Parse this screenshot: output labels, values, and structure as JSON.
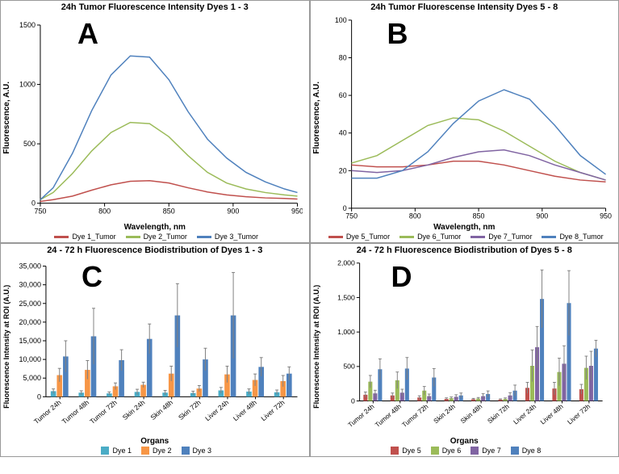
{
  "panelA": {
    "letter": "A",
    "title": "24h Tumor Fluorescence Intensity Dyes 1 - 3",
    "type": "line",
    "xlabel": "Wavelength, nm",
    "ylabel": "Fluorescence, A.U.",
    "xlim": [
      750,
      950
    ],
    "xtick_step": 50,
    "ylim": [
      0,
      1500
    ],
    "ytick_step": 500,
    "title_fontsize": 11,
    "label_fontsize": 10,
    "tick_fontsize": 9,
    "background_color": "#ffffff",
    "axis_color": "#000000",
    "line_width": 1.5,
    "series": [
      {
        "name": "Dye 1_Tumor",
        "color": "#c0504d",
        "x": [
          750,
          760,
          775,
          790,
          805,
          820,
          835,
          850,
          865,
          880,
          895,
          910,
          925,
          940,
          950
        ],
        "y": [
          15,
          30,
          60,
          110,
          155,
          185,
          190,
          170,
          130,
          95,
          70,
          55,
          45,
          40,
          35
        ]
      },
      {
        "name": "Dye 2_Tumor",
        "color": "#9bbb59",
        "x": [
          750,
          760,
          775,
          790,
          805,
          820,
          835,
          850,
          865,
          880,
          895,
          910,
          925,
          940,
          950
        ],
        "y": [
          30,
          90,
          250,
          440,
          595,
          680,
          670,
          560,
          400,
          260,
          170,
          120,
          90,
          70,
          60
        ]
      },
      {
        "name": "Dye 3_Tumor",
        "color": "#4f81bd",
        "x": [
          750,
          760,
          775,
          790,
          805,
          820,
          835,
          850,
          865,
          880,
          895,
          910,
          925,
          940,
          950
        ],
        "y": [
          30,
          130,
          420,
          780,
          1080,
          1240,
          1230,
          1040,
          770,
          540,
          380,
          260,
          180,
          120,
          90
        ]
      }
    ]
  },
  "panelB": {
    "letter": "B",
    "title": "24h Tumor Fluorescense Intensity Dyes 5 - 8",
    "type": "line",
    "xlabel": "Wavelength, nm",
    "ylabel": "Fluorescence, A.U.",
    "xlim": [
      750,
      950
    ],
    "xtick_step": 50,
    "ylim": [
      0,
      100
    ],
    "ytick_step": 20,
    "title_fontsize": 11,
    "label_fontsize": 10,
    "tick_fontsize": 9,
    "background_color": "#ffffff",
    "axis_color": "#000000",
    "line_width": 1.5,
    "series": [
      {
        "name": "Dye 5_Tumor",
        "color": "#c0504d",
        "x": [
          750,
          770,
          790,
          810,
          830,
          850,
          870,
          890,
          910,
          930,
          950
        ],
        "y": [
          23,
          22,
          22,
          23,
          25,
          25,
          23,
          20,
          17,
          15,
          14
        ]
      },
      {
        "name": "Dye 6_Tumor",
        "color": "#9bbb59",
        "x": [
          750,
          770,
          790,
          810,
          830,
          850,
          870,
          890,
          910,
          930,
          950
        ],
        "y": [
          24,
          28,
          36,
          44,
          48,
          47,
          41,
          33,
          25,
          19,
          15
        ]
      },
      {
        "name": "Dye 7_Tumor",
        "color": "#8064a2",
        "x": [
          750,
          770,
          790,
          810,
          830,
          850,
          870,
          890,
          910,
          930,
          950
        ],
        "y": [
          20,
          19,
          20,
          23,
          27,
          30,
          31,
          28,
          23,
          19,
          15
        ]
      },
      {
        "name": "Dye 8_Tumor",
        "color": "#4f81bd",
        "x": [
          750,
          770,
          790,
          810,
          830,
          850,
          870,
          890,
          910,
          930,
          950
        ],
        "y": [
          16,
          16,
          20,
          30,
          45,
          57,
          63,
          58,
          44,
          28,
          18
        ]
      }
    ]
  },
  "panelC": {
    "letter": "C",
    "title": "24 - 72 h Fluorescence Biodistribution of Dyes 1 - 3",
    "type": "bar",
    "xlabel": "Organs",
    "ylabel": "Fluorescence Intensity at ROI (A.U.)",
    "ylim": [
      0,
      35000
    ],
    "ytick_step": 5000,
    "ytick_fmt": "comma",
    "title_fontsize": 11,
    "label_fontsize": 10,
    "tick_fontsize": 9,
    "bar_width": 0.22,
    "group_gap": 0.4,
    "background_color": "#ffffff",
    "axis_color": "#000000",
    "error_color": "#808080",
    "error_width": 1,
    "categories": [
      "Tumor 24h",
      "Tumor 48h",
      "Tumor 72h",
      "Skin 24h",
      "Skin 48h",
      "Skin 72h",
      "Liver 24h",
      "Liver 48h",
      "Liver 72h"
    ],
    "series": [
      {
        "name": "Dye 1",
        "color": "#4bacc6",
        "values": [
          1500,
          1100,
          900,
          1300,
          1100,
          1000,
          1700,
          1400,
          1200
        ],
        "errors": [
          600,
          500,
          400,
          700,
          600,
          500,
          800,
          700,
          600
        ]
      },
      {
        "name": "Dye 2",
        "color": "#f79646",
        "values": [
          5800,
          7200,
          2800,
          3200,
          6200,
          2200,
          6000,
          4500,
          4200
        ],
        "errors": [
          1800,
          2500,
          900,
          700,
          2000,
          800,
          2200,
          1600,
          1500
        ]
      },
      {
        "name": "Dye 3",
        "color": "#4f81bd",
        "values": [
          10800,
          16200,
          9800,
          15500,
          21800,
          10000,
          21800,
          8000,
          6200
        ],
        "errors": [
          4200,
          7500,
          2800,
          4000,
          8500,
          3000,
          11500,
          2500,
          1800
        ]
      }
    ]
  },
  "panelD": {
    "letter": "D",
    "title": "24 - 72 h Fluorescence Biodistribution of Dyes 5 - 8",
    "type": "bar",
    "xlabel": "Organs",
    "ylabel": "Fluorescence Intensity at ROI (A.U.)",
    "ylim": [
      0,
      2000
    ],
    "ytick_step": 500,
    "ytick_fmt": "comma",
    "title_fontsize": 11,
    "label_fontsize": 10,
    "tick_fontsize": 9,
    "bar_width": 0.18,
    "group_gap": 0.3,
    "background_color": "#ffffff",
    "axis_color": "#000000",
    "error_color": "#808080",
    "error_width": 1,
    "categories": [
      "Tumor 24h",
      "Tumor 48h",
      "Tumor 72h",
      "Skin 24h",
      "Skin 48h",
      "Skin 72h",
      "Liver 24h",
      "Liver 48h",
      "Liver 72h"
    ],
    "series": [
      {
        "name": "Dye 5",
        "color": "#c0504d",
        "values": [
          90,
          80,
          50,
          30,
          25,
          20,
          190,
          180,
          170
        ],
        "errors": [
          40,
          35,
          25,
          15,
          12,
          10,
          80,
          90,
          70
        ]
      },
      {
        "name": "Dye 6",
        "color": "#9bbb59",
        "values": [
          280,
          300,
          150,
          40,
          35,
          30,
          510,
          420,
          480
        ],
        "errors": [
          90,
          120,
          60,
          18,
          15,
          14,
          230,
          200,
          170
        ]
      },
      {
        "name": "Dye 7",
        "color": "#8064a2",
        "values": [
          110,
          120,
          70,
          60,
          70,
          80,
          780,
          540,
          510
        ],
        "errors": [
          45,
          50,
          30,
          30,
          35,
          40,
          300,
          260,
          210
        ]
      },
      {
        "name": "Dye 8",
        "color": "#4f81bd",
        "values": [
          460,
          470,
          340,
          80,
          100,
          150,
          1480,
          1420,
          760
        ],
        "errors": [
          150,
          160,
          130,
          35,
          45,
          80,
          420,
          470,
          120
        ]
      }
    ]
  }
}
